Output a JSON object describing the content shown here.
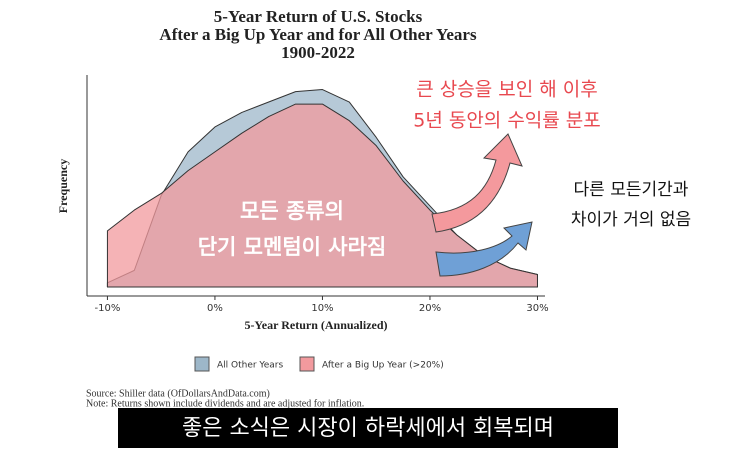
{
  "chart_data": {
    "type": "density",
    "title": [
      "5-Year Return of U.S. Stocks",
      "After a Big Up Year and for All Other Years",
      "1900-2022"
    ],
    "x_label": "5-Year Return (Annualized)",
    "y_label": "Frequency",
    "x": [
      -10,
      -7.5,
      -5,
      -2.5,
      0,
      2.5,
      5,
      7.5,
      10,
      12.5,
      15,
      17.5,
      20,
      22.5,
      25,
      27.5,
      30
    ],
    "series": [
      {
        "name": "All Other Years",
        "color": "#9db7c9",
        "values": [
          0.02,
          0.08,
          0.44,
          0.65,
          0.77,
          0.84,
          0.89,
          0.94,
          0.95,
          0.89,
          0.72,
          0.53,
          0.39,
          0.25,
          0.15,
          0.09,
          0.06
        ]
      },
      {
        "name": "After a Big Up Year (>20%)",
        "color": "#f29a9e",
        "values": [
          0.27,
          0.37,
          0.45,
          0.56,
          0.65,
          0.74,
          0.82,
          0.88,
          0.88,
          0.8,
          0.68,
          0.51,
          0.37,
          0.25,
          0.15,
          0.09,
          0.06
        ]
      }
    ],
    "xlim": [
      -11.9,
      30.7
    ],
    "ylim": [
      0,
      1.02
    ],
    "xticks": [
      {
        "value": -10,
        "label": "-10%"
      },
      {
        "value": 0,
        "label": "0%"
      },
      {
        "value": 10,
        "label": "10%"
      },
      {
        "value": 20,
        "label": "20%"
      },
      {
        "value": 30,
        "label": "30%"
      }
    ],
    "source": "Source:  Shiller data (OfDollarsAndData.com)",
    "note": "Note: Returns shown include dividends and are adjusted for inflation.",
    "annotations": [
      {
        "color": "#e8484f",
        "lines": [
          "큰 상승을 보인 해 이후",
          "5년 동안의 수익률 분포"
        ]
      },
      {
        "color": "#111111",
        "lines": [
          "다른 모든기간과",
          "차이가 거의 없음"
        ]
      },
      {
        "color": "#ffffff",
        "lines": [
          "모든 종류의",
          "단기 모멘텀이 사라짐"
        ]
      }
    ],
    "caption": "좋은 소식은 시장이 하락세에서 회복되며"
  }
}
